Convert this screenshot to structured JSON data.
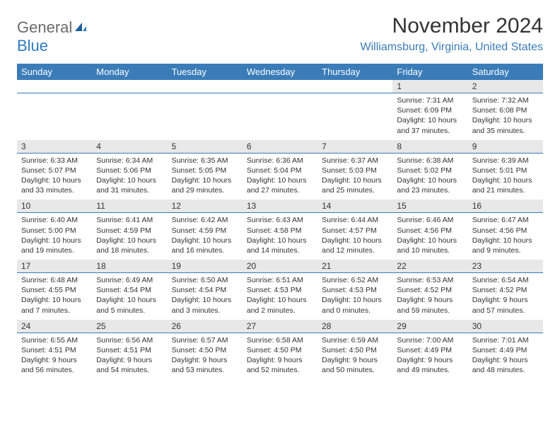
{
  "logo": {
    "general": "General",
    "blue": "Blue"
  },
  "title": "November 2024",
  "location": "Williamsburg, Virginia, United States",
  "colors": {
    "header_bg": "#3a7cb8",
    "header_text": "#ffffff",
    "daynum_bg": "#e8e8e8",
    "border": "#3a7cb8",
    "logo_gray": "#6b6b6b",
    "logo_blue": "#2f7bbf"
  },
  "days_of_week": [
    "Sunday",
    "Monday",
    "Tuesday",
    "Wednesday",
    "Thursday",
    "Friday",
    "Saturday"
  ],
  "weeks": [
    [
      null,
      null,
      null,
      null,
      null,
      {
        "n": "1",
        "sr": "Sunrise: 7:31 AM",
        "ss": "Sunset: 6:09 PM",
        "dl": "Daylight: 10 hours and 37 minutes."
      },
      {
        "n": "2",
        "sr": "Sunrise: 7:32 AM",
        "ss": "Sunset: 6:08 PM",
        "dl": "Daylight: 10 hours and 35 minutes."
      }
    ],
    [
      {
        "n": "3",
        "sr": "Sunrise: 6:33 AM",
        "ss": "Sunset: 5:07 PM",
        "dl": "Daylight: 10 hours and 33 minutes."
      },
      {
        "n": "4",
        "sr": "Sunrise: 6:34 AM",
        "ss": "Sunset: 5:06 PM",
        "dl": "Daylight: 10 hours and 31 minutes."
      },
      {
        "n": "5",
        "sr": "Sunrise: 6:35 AM",
        "ss": "Sunset: 5:05 PM",
        "dl": "Daylight: 10 hours and 29 minutes."
      },
      {
        "n": "6",
        "sr": "Sunrise: 6:36 AM",
        "ss": "Sunset: 5:04 PM",
        "dl": "Daylight: 10 hours and 27 minutes."
      },
      {
        "n": "7",
        "sr": "Sunrise: 6:37 AM",
        "ss": "Sunset: 5:03 PM",
        "dl": "Daylight: 10 hours and 25 minutes."
      },
      {
        "n": "8",
        "sr": "Sunrise: 6:38 AM",
        "ss": "Sunset: 5:02 PM",
        "dl": "Daylight: 10 hours and 23 minutes."
      },
      {
        "n": "9",
        "sr": "Sunrise: 6:39 AM",
        "ss": "Sunset: 5:01 PM",
        "dl": "Daylight: 10 hours and 21 minutes."
      }
    ],
    [
      {
        "n": "10",
        "sr": "Sunrise: 6:40 AM",
        "ss": "Sunset: 5:00 PM",
        "dl": "Daylight: 10 hours and 19 minutes."
      },
      {
        "n": "11",
        "sr": "Sunrise: 6:41 AM",
        "ss": "Sunset: 4:59 PM",
        "dl": "Daylight: 10 hours and 18 minutes."
      },
      {
        "n": "12",
        "sr": "Sunrise: 6:42 AM",
        "ss": "Sunset: 4:59 PM",
        "dl": "Daylight: 10 hours and 16 minutes."
      },
      {
        "n": "13",
        "sr": "Sunrise: 6:43 AM",
        "ss": "Sunset: 4:58 PM",
        "dl": "Daylight: 10 hours and 14 minutes."
      },
      {
        "n": "14",
        "sr": "Sunrise: 6:44 AM",
        "ss": "Sunset: 4:57 PM",
        "dl": "Daylight: 10 hours and 12 minutes."
      },
      {
        "n": "15",
        "sr": "Sunrise: 6:46 AM",
        "ss": "Sunset: 4:56 PM",
        "dl": "Daylight: 10 hours and 10 minutes."
      },
      {
        "n": "16",
        "sr": "Sunrise: 6:47 AM",
        "ss": "Sunset: 4:56 PM",
        "dl": "Daylight: 10 hours and 9 minutes."
      }
    ],
    [
      {
        "n": "17",
        "sr": "Sunrise: 6:48 AM",
        "ss": "Sunset: 4:55 PM",
        "dl": "Daylight: 10 hours and 7 minutes."
      },
      {
        "n": "18",
        "sr": "Sunrise: 6:49 AM",
        "ss": "Sunset: 4:54 PM",
        "dl": "Daylight: 10 hours and 5 minutes."
      },
      {
        "n": "19",
        "sr": "Sunrise: 6:50 AM",
        "ss": "Sunset: 4:54 PM",
        "dl": "Daylight: 10 hours and 3 minutes."
      },
      {
        "n": "20",
        "sr": "Sunrise: 6:51 AM",
        "ss": "Sunset: 4:53 PM",
        "dl": "Daylight: 10 hours and 2 minutes."
      },
      {
        "n": "21",
        "sr": "Sunrise: 6:52 AM",
        "ss": "Sunset: 4:53 PM",
        "dl": "Daylight: 10 hours and 0 minutes."
      },
      {
        "n": "22",
        "sr": "Sunrise: 6:53 AM",
        "ss": "Sunset: 4:52 PM",
        "dl": "Daylight: 9 hours and 59 minutes."
      },
      {
        "n": "23",
        "sr": "Sunrise: 6:54 AM",
        "ss": "Sunset: 4:52 PM",
        "dl": "Daylight: 9 hours and 57 minutes."
      }
    ],
    [
      {
        "n": "24",
        "sr": "Sunrise: 6:55 AM",
        "ss": "Sunset: 4:51 PM",
        "dl": "Daylight: 9 hours and 56 minutes."
      },
      {
        "n": "25",
        "sr": "Sunrise: 6:56 AM",
        "ss": "Sunset: 4:51 PM",
        "dl": "Daylight: 9 hours and 54 minutes."
      },
      {
        "n": "26",
        "sr": "Sunrise: 6:57 AM",
        "ss": "Sunset: 4:50 PM",
        "dl": "Daylight: 9 hours and 53 minutes."
      },
      {
        "n": "27",
        "sr": "Sunrise: 6:58 AM",
        "ss": "Sunset: 4:50 PM",
        "dl": "Daylight: 9 hours and 52 minutes."
      },
      {
        "n": "28",
        "sr": "Sunrise: 6:59 AM",
        "ss": "Sunset: 4:50 PM",
        "dl": "Daylight: 9 hours and 50 minutes."
      },
      {
        "n": "29",
        "sr": "Sunrise: 7:00 AM",
        "ss": "Sunset: 4:49 PM",
        "dl": "Daylight: 9 hours and 49 minutes."
      },
      {
        "n": "30",
        "sr": "Sunrise: 7:01 AM",
        "ss": "Sunset: 4:49 PM",
        "dl": "Daylight: 9 hours and 48 minutes."
      }
    ]
  ]
}
